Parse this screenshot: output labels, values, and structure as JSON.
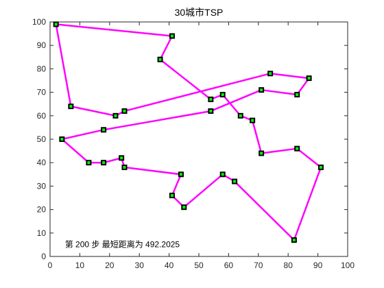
{
  "chart_data": {
    "type": "line",
    "title": "30城市TSP",
    "annotation": "第 200 步   最短距离为 492.2025",
    "xlabel": "",
    "ylabel": "",
    "xlim": [
      0,
      100
    ],
    "ylim": [
      0,
      100
    ],
    "xticks": [
      0,
      10,
      20,
      30,
      40,
      50,
      60,
      70,
      80,
      90,
      100
    ],
    "yticks": [
      0,
      10,
      20,
      30,
      40,
      50,
      60,
      70,
      80,
      90,
      100
    ],
    "grid": false,
    "series": [
      {
        "route": [
          [
            2,
            99
          ],
          [
            41,
            94
          ],
          [
            37,
            84
          ],
          [
            54,
            67
          ],
          [
            58,
            69
          ],
          [
            64,
            60
          ],
          [
            68,
            58
          ],
          [
            71,
            44
          ],
          [
            83,
            46
          ],
          [
            91,
            38
          ],
          [
            82,
            7
          ],
          [
            62,
            32
          ],
          [
            58,
            35
          ],
          [
            45,
            21
          ],
          [
            41,
            26
          ],
          [
            44,
            35
          ],
          [
            25,
            38
          ],
          [
            24,
            42
          ],
          [
            18,
            40
          ],
          [
            13,
            40
          ],
          [
            4,
            50
          ],
          [
            18,
            54
          ],
          [
            54,
            62
          ],
          [
            71,
            71
          ],
          [
            83,
            69
          ],
          [
            87,
            76
          ],
          [
            74,
            78
          ],
          [
            25,
            62
          ],
          [
            22,
            60
          ],
          [
            7,
            64
          ],
          [
            2,
            99
          ]
        ]
      }
    ],
    "colors": {
      "route": "#ff00ff",
      "marker_edge": "#000000",
      "marker_face": "#00ff00"
    }
  }
}
